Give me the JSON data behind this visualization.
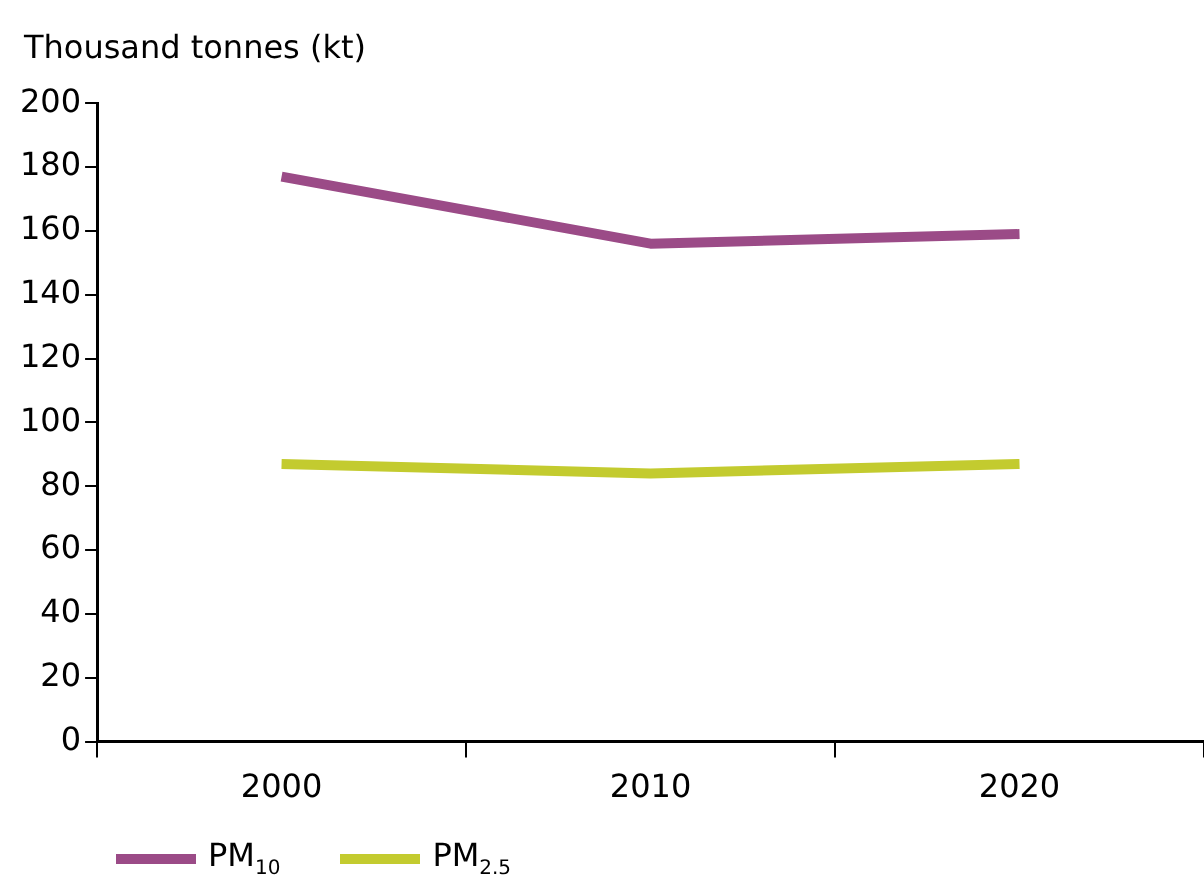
{
  "chart_data": {
    "type": "line",
    "ylabel": "Thousand tonnes (kt)",
    "categories": [
      "2000",
      "2010",
      "2020"
    ],
    "series": [
      {
        "name": "PM$_{10}$",
        "color": "#9b4b87",
        "values": [
          177,
          156,
          159
        ]
      },
      {
        "name": "PM$_{2.5}$",
        "color": "#c3cb2f",
        "values": [
          87,
          84,
          87
        ]
      }
    ],
    "ylim": [
      0,
      200
    ],
    "yticks": [
      0,
      20,
      40,
      60,
      80,
      100,
      120,
      140,
      160,
      180,
      200
    ],
    "grid": false,
    "legend": "bottom left",
    "marker": "none",
    "line_style": "solid"
  }
}
